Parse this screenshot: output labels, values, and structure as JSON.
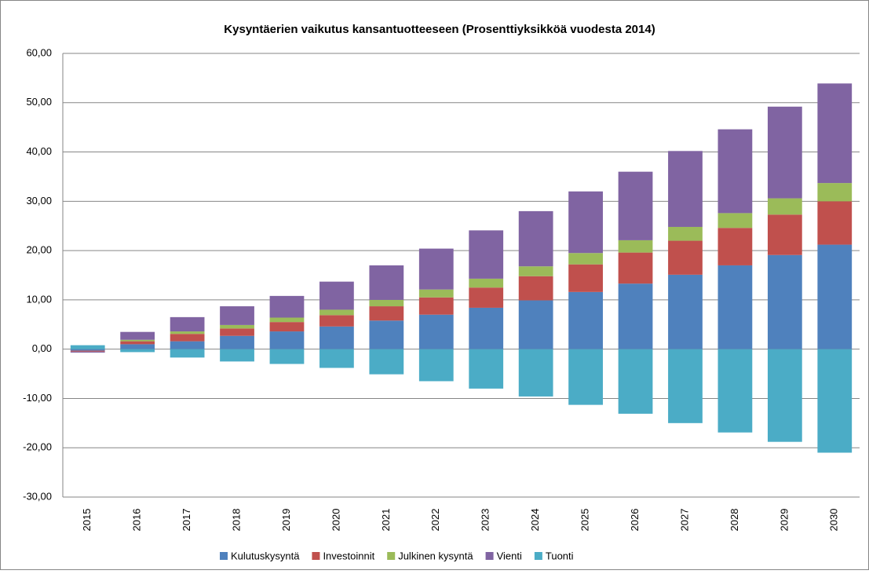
{
  "chart_data": {
    "type": "stacked_bar",
    "title": "Kysyntäerien vaikutus kansantuotteeseen (Prosenttiyksikköä vuodesta 2014)",
    "categories": [
      "2015",
      "2016",
      "2017",
      "2018",
      "2019",
      "2020",
      "2021",
      "2022",
      "2023",
      "2024",
      "2025",
      "2026",
      "2027",
      "2028",
      "2029",
      "2030"
    ],
    "series": [
      {
        "name": "Kulutuskysyntä",
        "color": "#4f81bd",
        "values": [
          -0.3,
          1.0,
          1.6,
          2.7,
          3.6,
          4.6,
          5.8,
          7.0,
          8.4,
          9.9,
          11.6,
          13.3,
          15.1,
          17.0,
          19.1,
          21.2
        ]
      },
      {
        "name": "Investoinnit",
        "color": "#c0504d",
        "values": [
          -0.2,
          0.6,
          1.5,
          1.5,
          1.9,
          2.3,
          2.9,
          3.5,
          4.1,
          4.9,
          5.6,
          6.3,
          6.9,
          7.6,
          8.2,
          8.8
        ]
      },
      {
        "name": "Julkinen kysyntä",
        "color": "#9bbb59",
        "values": [
          0.0,
          0.3,
          0.5,
          0.7,
          0.9,
          1.1,
          1.3,
          1.6,
          1.8,
          2.0,
          2.3,
          2.5,
          2.8,
          3.0,
          3.3,
          3.7
        ]
      },
      {
        "name": "Vienti",
        "color": "#8064a2",
        "values": [
          -0.2,
          1.6,
          2.9,
          3.8,
          4.4,
          5.7,
          7.0,
          8.3,
          9.8,
          11.2,
          12.5,
          13.9,
          15.4,
          17.0,
          18.6,
          20.2
        ]
      },
      {
        "name": "Tuonti",
        "color": "#4bacc6",
        "values": [
          0.8,
          -0.6,
          -1.7,
          -2.5,
          -3.0,
          -3.8,
          -5.1,
          -6.5,
          -8.0,
          -9.6,
          -11.3,
          -13.1,
          -15.0,
          -16.9,
          -18.8,
          -21.0
        ]
      }
    ],
    "ylim": [
      -30,
      60
    ],
    "yticks": [
      {
        "value": -30,
        "label": "-30,00"
      },
      {
        "value": -20,
        "label": "-20,00"
      },
      {
        "value": -10,
        "label": "-10,00"
      },
      {
        "value": 0,
        "label": "0,00"
      },
      {
        "value": 10,
        "label": "10,00"
      },
      {
        "value": 20,
        "label": "20,00"
      },
      {
        "value": 30,
        "label": "30,00"
      },
      {
        "value": 40,
        "label": "40,00"
      },
      {
        "value": 50,
        "label": "50,00"
      },
      {
        "value": 60,
        "label": "60,00"
      }
    ],
    "grid": true,
    "legend": "bottom"
  }
}
